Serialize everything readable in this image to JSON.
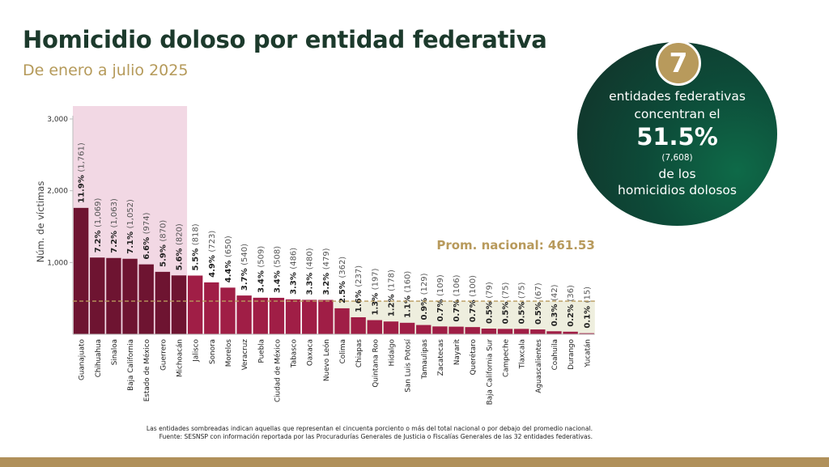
{
  "header": {
    "title": "Homicidio doloso por entidad federativa",
    "subtitle": "De enero a julio 2025"
  },
  "highlight": {
    "badge": "7",
    "line1": "entidades federativas",
    "line2": "concentran el",
    "percent": "51.5%",
    "count": "(7,608)",
    "line3": "de los",
    "line4": "homicidios dolosos"
  },
  "footnotes": {
    "note": "Las entidades sombreadas indican aquellas que representan el cincuenta porciento o más del total nacional o por debajo del promedio nacional.",
    "source": "Fuente: SESNSP con información reportada por las Procuradurías Generales de Justicia o Fiscalías Generales de las 32 entidades federativas."
  },
  "colors": {
    "dark_bar": "#6e1431",
    "bar": "#a01e46",
    "top_shade": "#f2d8e4",
    "bottom_shade": "#eeeede",
    "avg_line": "#b89a5c",
    "title": "#1c3a2c",
    "accent": "#b59a5a",
    "circle": "#0d4a38"
  },
  "chart_data": {
    "type": "bar",
    "ylabel": "Núm. de víctimas",
    "ylim": [
      0,
      3000
    ],
    "yticks": [
      1000,
      2000,
      3000
    ],
    "ytick_labels": [
      "1,000",
      "2,000",
      "3,000"
    ],
    "average": 461.53,
    "average_label": "Prom. nacional: 461.53",
    "shaded_top_count": 7,
    "categories": [
      "Guanajuato",
      "Chihuahua",
      "Sinaloa",
      "Baja California",
      "Estado de México",
      "Guerrero",
      "Michoacán",
      "Jalisco",
      "Sonora",
      "Morelos",
      "Veracruz",
      "Puebla",
      "Ciudad de México",
      "Tabasco",
      "Oaxaca",
      "Nuevo León",
      "Colima",
      "Chiapas",
      "Quintana Roo",
      "Hidalgo",
      "San Luis Potosí",
      "Tamaulipas",
      "Zacatecas",
      "Nayarit",
      "Querétaro",
      "Baja California Sur",
      "Campeche",
      "Tlaxcala",
      "Aguascalientes",
      "Coahuila",
      "Durango",
      "Yucatán"
    ],
    "values": [
      1761,
      1069,
      1063,
      1052,
      974,
      870,
      820,
      818,
      723,
      650,
      540,
      509,
      508,
      486,
      480,
      479,
      362,
      237,
      197,
      178,
      160,
      129,
      109,
      106,
      100,
      79,
      75,
      75,
      67,
      42,
      36,
      15
    ],
    "percent_labels": [
      "11.9%",
      "7.2%",
      "7.2%",
      "7.1%",
      "6.6%",
      "5.9%",
      "5.6%",
      "5.5%",
      "4.9%",
      "4.4%",
      "3.7%",
      "3.4%",
      "3.4%",
      "3.3%",
      "3.3%",
      "3.2%",
      "2.5%",
      "1.6%",
      "1.3%",
      "1.2%",
      "1.1%",
      "0.9%",
      "0.7%",
      "0.7%",
      "0.7%",
      "0.5%",
      "0.5%",
      "0.5%",
      "0.5%",
      "0.3%",
      "0.2%",
      "0.1%"
    ],
    "count_labels": [
      "(1,761)",
      "(1,069)",
      "(1,063)",
      "(1,052)",
      "(974)",
      "(870)",
      "(820)",
      "(818)",
      "(723)",
      "(650)",
      "(540)",
      "(509)",
      "(508)",
      "(486)",
      "(480)",
      "(479)",
      "(362)",
      "(237)",
      "(197)",
      "(178)",
      "(160)",
      "(129)",
      "(109)",
      "(106)",
      "(100)",
      "(79)",
      "(75)",
      "(75)",
      "(67)",
      "(42)",
      "(36)",
      "(15)"
    ]
  }
}
